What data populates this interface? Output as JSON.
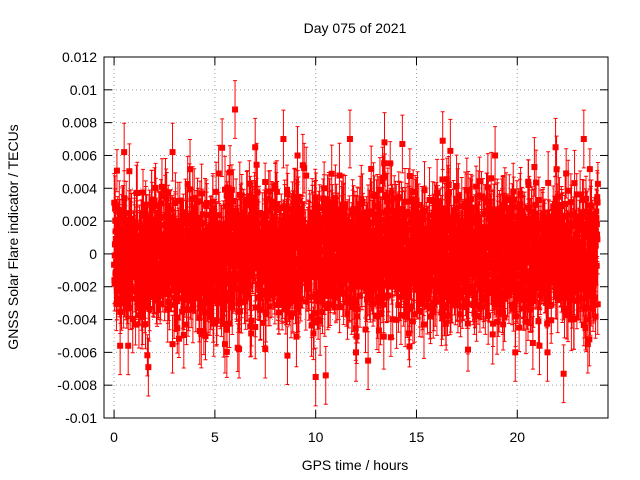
{
  "chart_data": {
    "type": "scatter",
    "title": "Day 075 of 2021",
    "xlabel": "GPS time / hours",
    "ylabel": "GNSS Solar Flare indicator / TECUs",
    "xlim": [
      -0.5,
      24.5
    ],
    "ylim": [
      -0.01,
      0.012
    ],
    "x_ticks": [
      "0",
      "5",
      "10",
      "15",
      "20"
    ],
    "y_ticks": [
      "-0.01",
      "-0.008",
      "-0.006",
      "-0.004",
      "-0.002",
      "0",
      "0.002",
      "0.004",
      "0.006",
      "0.008",
      "0.01",
      "0.012"
    ],
    "grid": true,
    "legend": "none",
    "series": [
      {
        "color": "#ff0000",
        "marker": "square",
        "error_bars": true,
        "points_per_hour": 120,
        "sigma": 0.0019,
        "typical_error": 0.0016,
        "x_range": [
          0,
          24
        ],
        "highlighted_points": [
          {
            "x": 0.3,
            "y": -0.0056
          },
          {
            "x": 0.5,
            "y": 0.0062
          },
          {
            "x": 0.7,
            "y": -0.0056
          },
          {
            "x": 1.7,
            "y": -0.0069
          },
          {
            "x": 2.9,
            "y": 0.0062
          },
          {
            "x": 2.9,
            "y": -0.0055
          },
          {
            "x": 5.5,
            "y": -0.0055
          },
          {
            "x": 6.0,
            "y": 0.0088
          },
          {
            "x": 6.2,
            "y": -0.0058
          },
          {
            "x": 7.0,
            "y": 0.0065
          },
          {
            "x": 7.5,
            "y": -0.0058
          },
          {
            "x": 8.4,
            "y": 0.007
          },
          {
            "x": 8.6,
            "y": -0.0062
          },
          {
            "x": 9.1,
            "y": 0.006
          },
          {
            "x": 10.0,
            "y": -0.0075
          },
          {
            "x": 10.5,
            "y": -0.0074
          },
          {
            "x": 11.7,
            "y": 0.007
          },
          {
            "x": 12.0,
            "y": -0.006
          },
          {
            "x": 12.6,
            "y": -0.0065
          },
          {
            "x": 14.3,
            "y": 0.0067
          },
          {
            "x": 16.3,
            "y": 0.0069
          },
          {
            "x": 18.9,
            "y": 0.006
          },
          {
            "x": 19.9,
            "y": -0.006
          },
          {
            "x": 21.1,
            "y": -0.0056
          },
          {
            "x": 21.5,
            "y": -0.006
          },
          {
            "x": 21.9,
            "y": 0.0065
          },
          {
            "x": 22.3,
            "y": -0.0073
          },
          {
            "x": 23.3,
            "y": 0.007
          },
          {
            "x": 23.5,
            "y": -0.0055
          }
        ]
      }
    ]
  }
}
